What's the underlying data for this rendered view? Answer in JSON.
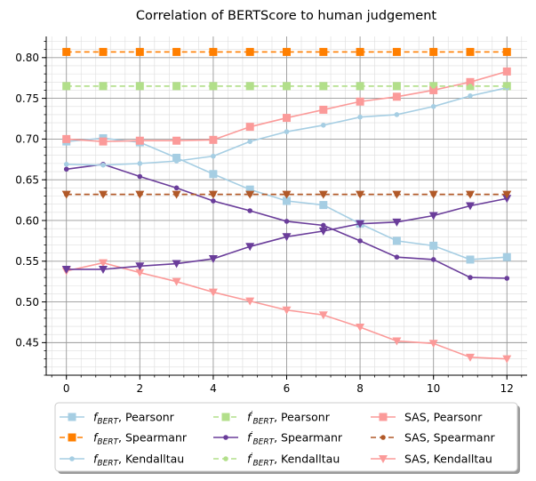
{
  "chart_data": {
    "type": "line",
    "title": "Correlation of BERTScore to human judgement",
    "xlabel": "",
    "ylabel": "",
    "xlim": [
      -0.55,
      12.55
    ],
    "ylim": [
      0.41,
      0.826
    ],
    "xticks": [
      0,
      2,
      4,
      6,
      8,
      10,
      12
    ],
    "yticks": [
      0.45,
      0.5,
      0.55,
      0.6,
      0.65,
      0.7,
      0.75,
      0.8
    ],
    "ytick_labels": [
      "0.45",
      "0.50",
      "0.55",
      "0.60",
      "0.65",
      "0.70",
      "0.75",
      "0.80"
    ],
    "grid": "major and minor",
    "legend_position": "bottom",
    "x": [
      0,
      1,
      2,
      3,
      4,
      5,
      6,
      7,
      8,
      9,
      10,
      11,
      12
    ],
    "series": [
      {
        "name_base": "f",
        "name_sub": "BERT",
        "name_prime": false,
        "name_suffix": ", Pearsonr",
        "color": "#a6cee3",
        "dash": "",
        "marker": "square",
        "values": [
          0.697,
          0.701,
          0.696,
          0.677,
          0.657,
          0.638,
          0.624,
          0.619,
          0.596,
          0.575,
          0.569,
          0.552,
          0.555
        ]
      },
      {
        "name_base": "f",
        "name_sub": "BERT",
        "name_prime": true,
        "name_suffix": ", Pearsonr",
        "color": "#b2df8a",
        "dash": "6,4",
        "marker": "square",
        "values": [
          0.765,
          0.765,
          0.765,
          0.765,
          0.765,
          0.765,
          0.765,
          0.765,
          0.765,
          0.765,
          0.765,
          0.765,
          0.765
        ]
      },
      {
        "name_base": "SAS",
        "name_sub": "",
        "name_prime": false,
        "name_suffix": ", Pearsonr",
        "color": "#fb9a99",
        "dash": "",
        "marker": "square",
        "values": [
          0.7,
          0.697,
          0.698,
          0.698,
          0.699,
          0.715,
          0.726,
          0.736,
          0.746,
          0.752,
          0.76,
          0.77,
          0.783
        ]
      },
      {
        "name_base": "f",
        "name_sub": "BERT",
        "name_prime": false,
        "name_suffix": ", Spearmanr",
        "color": "#ff7f00",
        "dash": "6,4",
        "marker": "square",
        "values": [
          0.807,
          0.807,
          0.807,
          0.807,
          0.807,
          0.807,
          0.807,
          0.807,
          0.807,
          0.807,
          0.807,
          0.807,
          0.807
        ]
      },
      {
        "name_base": "f",
        "name_sub": "BERT",
        "name_prime": true,
        "name_suffix": ", Spearmanr",
        "color": "#6a3d9a",
        "dash": "",
        "marker": "dot",
        "values": [
          0.663,
          0.669,
          0.654,
          0.64,
          0.624,
          0.612,
          0.599,
          0.594,
          0.575,
          0.555,
          0.552,
          0.53,
          0.529
        ]
      },
      {
        "name_base": "SAS",
        "name_sub": "",
        "name_prime": false,
        "name_suffix": ", Spearmanr",
        "color": "#b15928",
        "dash": "6,4",
        "marker": "dot",
        "values": [
          0.632,
          0.632,
          0.632,
          0.632,
          0.632,
          0.632,
          0.632,
          0.632,
          0.632,
          0.632,
          0.632,
          0.632,
          0.632
        ]
      },
      {
        "name_base": "f",
        "name_sub": "BERT",
        "name_prime": false,
        "name_suffix": ", Kendalltau",
        "color": "#a6cee3",
        "dash": "",
        "marker": "dot",
        "values": [
          0.669,
          0.668,
          0.67,
          0.673,
          0.679,
          0.697,
          0.709,
          0.717,
          0.727,
          0.73,
          0.74,
          0.753,
          0.763
        ]
      },
      {
        "name_base": "f",
        "name_sub": "BERT",
        "name_prime": true,
        "name_suffix": ", Kendalltau",
        "color": "#b2df8a",
        "dash": "6,4",
        "marker": "dot",
        "values": [
          0.765,
          0.765,
          0.765,
          0.765,
          0.765,
          0.765,
          0.765,
          0.765,
          0.765,
          0.765,
          0.765,
          0.765,
          0.765
        ]
      },
      {
        "name_base": "SAS",
        "name_sub": "",
        "name_prime": false,
        "name_suffix": ", Kendalltau",
        "color": "#fb9a99",
        "dash": "",
        "marker": "triangle",
        "values": [
          0.538,
          0.548,
          0.536,
          0.525,
          0.512,
          0.501,
          0.49,
          0.484,
          0.469,
          0.452,
          0.449,
          0.432,
          0.43
        ]
      },
      {
        "name_base": "",
        "name_sub": "",
        "name_prime": false,
        "name_suffix": "",
        "color": "#6a3d9a",
        "dash": "",
        "marker": "triangle",
        "values": [
          0.54,
          0.54,
          0.544,
          0.547,
          0.553,
          0.568,
          0.58,
          0.587,
          0.596,
          0.598,
          0.606,
          0.618,
          0.627
        ]
      },
      {
        "name_base": "",
        "name_sub": "",
        "name_prime": false,
        "name_suffix": "",
        "color": "#b15928",
        "dash": "6,4",
        "marker": "triangle",
        "values": [
          0.632,
          0.632,
          0.632,
          0.632,
          0.632,
          0.632,
          0.632,
          0.632,
          0.632,
          0.632,
          0.632,
          0.632,
          0.632
        ]
      }
    ],
    "legend_order": [
      0,
      3,
      6,
      1,
      4,
      7,
      2,
      5,
      8
    ]
  }
}
